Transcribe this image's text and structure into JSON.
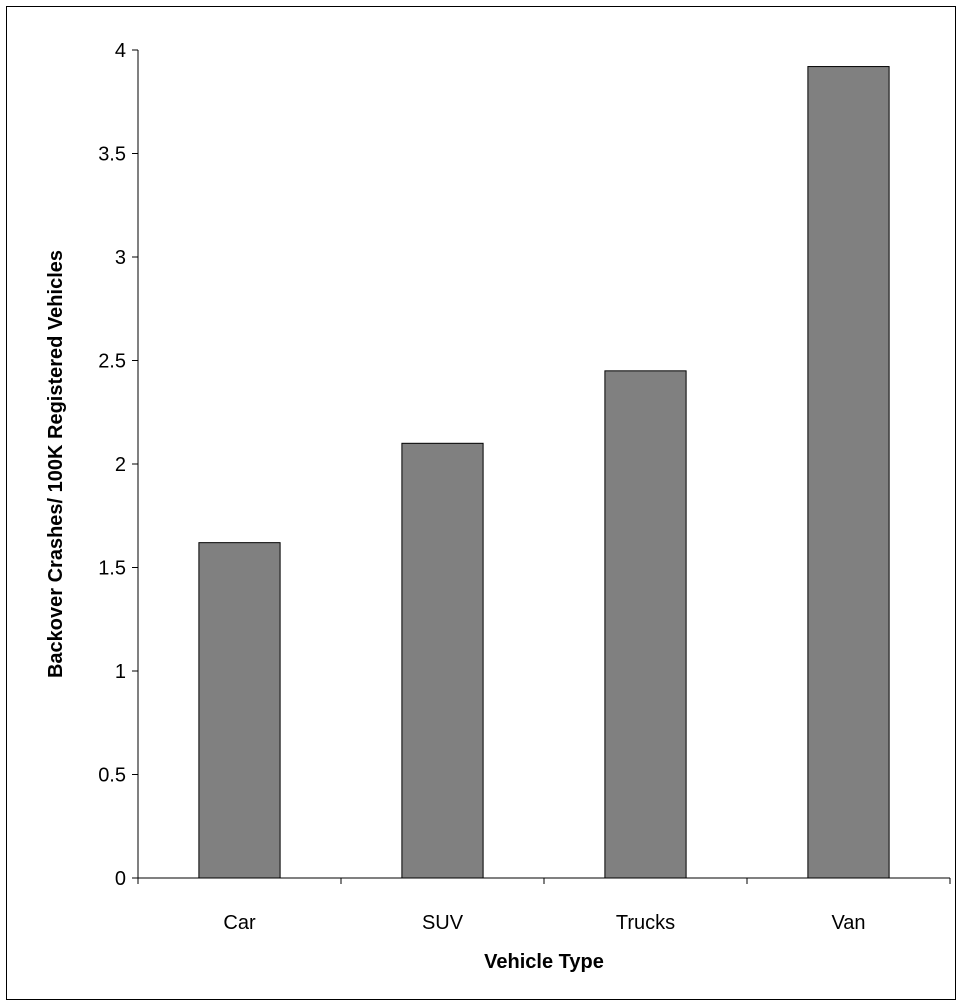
{
  "chart_data": {
    "type": "bar",
    "title": "",
    "xlabel": "Vehicle Type",
    "ylabel": "Backover Crashes/ 100K Registered Vehicles",
    "categories": [
      "Car",
      "SUV",
      "Trucks",
      "Van"
    ],
    "values": [
      1.62,
      2.1,
      2.45,
      3.92
    ],
    "ylim": [
      0,
      4
    ],
    "yticks": [
      "0",
      "0.5",
      "1",
      "1.5",
      "2",
      "2.5",
      "3",
      "3.5",
      "4"
    ],
    "grid": false,
    "legend": "none",
    "bar_color": "#808080",
    "bar_edge_color": "#000000"
  }
}
